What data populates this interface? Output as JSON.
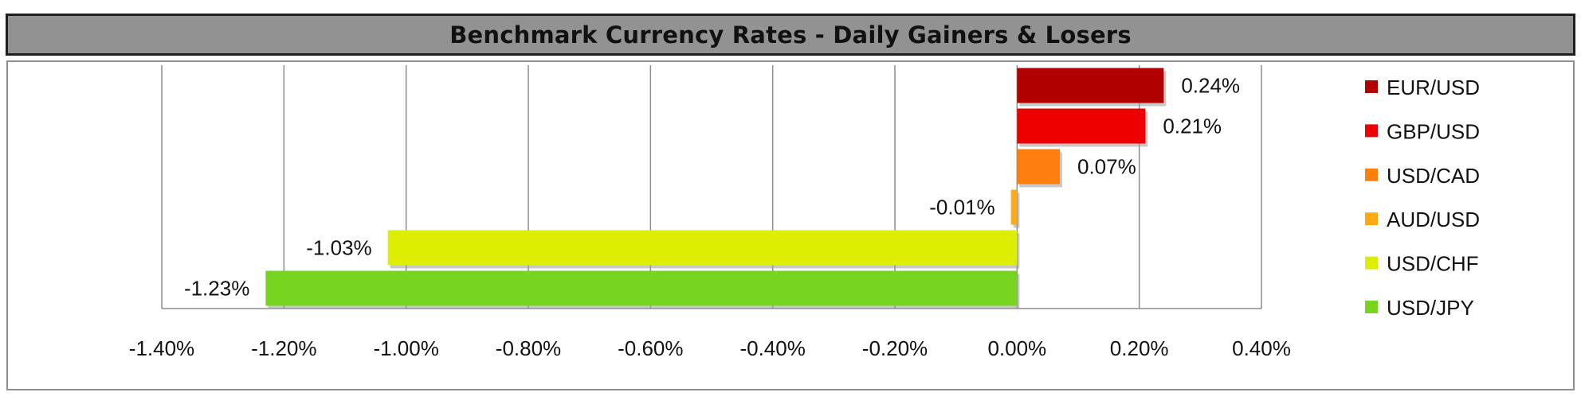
{
  "chart_data": {
    "type": "bar",
    "orientation": "horizontal",
    "title": "Benchmark Currency Rates - Daily Gainers & Losers",
    "categories": [
      "EUR/USD",
      "GBP/USD",
      "USD/CAD",
      "AUD/USD",
      "USD/CHF",
      "USD/JPY"
    ],
    "values": [
      0.24,
      0.21,
      0.07,
      -0.01,
      -1.03,
      -1.23
    ],
    "data_labels": [
      "0.24%",
      "0.21%",
      "0.07%",
      "-0.01%",
      "-1.03%",
      "-1.23%"
    ],
    "colors": [
      "#B00000",
      "#EE0000",
      "#FF7F0E",
      "#FFAA14",
      "#DDEE00",
      "#77D420"
    ],
    "xlim": [
      -1.4,
      0.4
    ],
    "x_ticks": [
      -1.4,
      -1.2,
      -1.0,
      -0.8,
      -0.6,
      -0.4,
      -0.2,
      0.0,
      0.2,
      0.4
    ],
    "x_tick_labels": [
      "-1.40%",
      "-1.20%",
      "-1.00%",
      "-0.80%",
      "-0.60%",
      "-0.40%",
      "-0.20%",
      "0.00%",
      "0.20%",
      "0.40%"
    ],
    "grid": true,
    "legend_position": "right"
  }
}
